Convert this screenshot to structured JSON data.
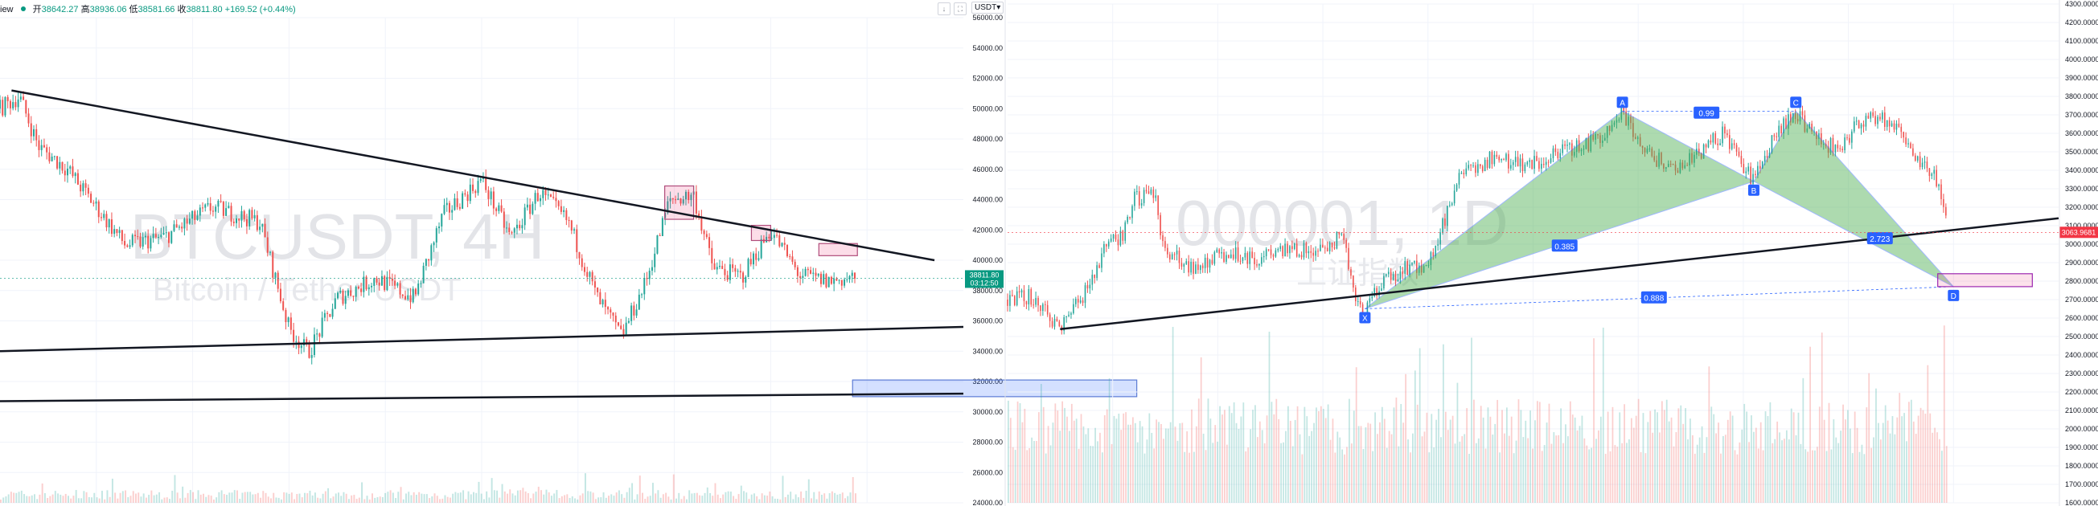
{
  "header": {
    "app_fragment": "iew",
    "open_label": "开",
    "open": "38642.27",
    "high_label": "高",
    "high": "38936.06",
    "low_label": "低",
    "low": "38581.66",
    "close_label": "收",
    "close": "38811.80",
    "change": "+169.52 (+0.44%)",
    "unit_selector": "USDT"
  },
  "colors": {
    "up": "#26a69a",
    "down": "#ef5350",
    "grid": "#f0f3fa",
    "trendline": "#131722",
    "harmonic_fill": "#4caf50",
    "harmonic_label": "#2962ff",
    "price_tag": "#089981",
    "price_tag_right": "#f23645"
  },
  "chart_data": [
    {
      "type": "candlestick",
      "watermark": "BTCUSDT, 4H",
      "watermark_sub": "Bitcoin / Tether USDT",
      "y_axis": {
        "ylim": [
          24000,
          56000
        ],
        "ticks": [
          "56000.00",
          "54000.00",
          "52000.00",
          "50000.00",
          "48000.00",
          "46000.00",
          "44000.00",
          "42000.00",
          "40000.00",
          "38000.00",
          "36000.00",
          "34000.00",
          "32000.00",
          "30000.00",
          "28000.00",
          "26000.00",
          "24000.00"
        ]
      },
      "last_price": "38811.80",
      "countdown": "03:12:50",
      "trendlines": [
        {
          "from": [
            0.012,
            51200
          ],
          "to": [
            0.97,
            40000
          ]
        },
        {
          "from": [
            0.0,
            34000
          ],
          "to": [
            1.0,
            35600
          ]
        },
        {
          "from": [
            0.0,
            30700
          ],
          "to": [
            1.0,
            31200
          ]
        }
      ],
      "zones": [
        {
          "x": [
            0.69,
            0.72
          ],
          "y": [
            42700,
            44900
          ]
        },
        {
          "x": [
            0.78,
            0.8
          ],
          "y": [
            41300,
            42300
          ]
        },
        {
          "x": [
            0.85,
            0.89
          ],
          "y": [
            40300,
            41100
          ]
        },
        {
          "x": [
            0.885,
            1.18
          ],
          "y": [
            31000,
            32100
          ]
        }
      ],
      "series_path": [
        [
          0.0,
          50000
        ],
        [
          0.02,
          50800
        ],
        [
          0.04,
          47500
        ],
        [
          0.07,
          46000
        ],
        [
          0.1,
          43500
        ],
        [
          0.13,
          41000
        ],
        [
          0.17,
          41500
        ],
        [
          0.22,
          43500
        ],
        [
          0.27,
          42500
        ],
        [
          0.3,
          35500
        ],
        [
          0.32,
          33900
        ],
        [
          0.35,
          37500
        ],
        [
          0.39,
          38800
        ],
        [
          0.43,
          37500
        ],
        [
          0.46,
          43000
        ],
        [
          0.5,
          45300
        ],
        [
          0.53,
          41500
        ],
        [
          0.56,
          44500
        ],
        [
          0.59,
          42500
        ],
        [
          0.62,
          37500
        ],
        [
          0.645,
          35000
        ],
        [
          0.67,
          38500
        ],
        [
          0.695,
          44000
        ],
        [
          0.72,
          44300
        ],
        [
          0.74,
          39500
        ],
        [
          0.77,
          38900
        ],
        [
          0.8,
          42000
        ],
        [
          0.83,
          39000
        ],
        [
          0.86,
          38600
        ],
        [
          0.89,
          38900
        ]
      ]
    },
    {
      "type": "candlestick",
      "watermark": "000001, 1D",
      "watermark_sub": "上证指数",
      "y_axis": {
        "ylim": [
          1600,
          4300
        ],
        "ticks": [
          "4300.0000",
          "4200.0000",
          "4100.0000",
          "4000.0000",
          "3900.0000",
          "3800.0000",
          "3700.0000",
          "3600.0000",
          "3500.0000",
          "3400.0000",
          "3300.0000",
          "3200.0000",
          "3100.0000",
          "3000.0000",
          "2900.0000",
          "2800.0000",
          "2700.0000",
          "2600.0000",
          "2500.0000",
          "2400.0000",
          "2300.0000",
          "2200.0000",
          "2100.0000",
          "2000.0000",
          "1900.0000",
          "1800.0000",
          "1700.0000",
          "1600.0000"
        ]
      },
      "last_price": "3063.9681",
      "trendline": {
        "from": [
          0.05,
          2540
        ],
        "to": [
          1.0,
          3140
        ]
      },
      "harmonic": {
        "points": [
          {
            "label": "X",
            "x": 0.34,
            "y": 2650
          },
          {
            "label": "A",
            "x": 0.585,
            "y": 3720
          },
          {
            "label": "B",
            "x": 0.71,
            "y": 3340
          },
          {
            "label": "C",
            "x": 0.75,
            "y": 3720
          },
          {
            "label": "D",
            "x": 0.9,
            "y": 2770
          }
        ],
        "ratios": [
          {
            "label": "0.385",
            "x": 0.53,
            "y": 2990
          },
          {
            "label": "0.99",
            "x": 0.665,
            "y": 3710
          },
          {
            "label": "2.723",
            "x": 0.83,
            "y": 3030
          },
          {
            "label": "0.888",
            "x": 0.615,
            "y": 2710
          }
        ],
        "zone": {
          "x": [
            0.885,
            0.975
          ],
          "y": [
            2770,
            2840
          ]
        }
      },
      "series_path": [
        [
          0.0,
          2700
        ],
        [
          0.02,
          2720
        ],
        [
          0.04,
          2600
        ],
        [
          0.05,
          2560
        ],
        [
          0.07,
          2700
        ],
        [
          0.09,
          2950
        ],
        [
          0.11,
          3060
        ],
        [
          0.12,
          3240
        ],
        [
          0.14,
          3260
        ],
        [
          0.15,
          2950
        ],
        [
          0.18,
          2870
        ],
        [
          0.21,
          2960
        ],
        [
          0.24,
          2920
        ],
        [
          0.27,
          2970
        ],
        [
          0.3,
          2960
        ],
        [
          0.32,
          3060
        ],
        [
          0.33,
          2700
        ],
        [
          0.34,
          2660
        ],
        [
          0.36,
          2800
        ],
        [
          0.38,
          2870
        ],
        [
          0.4,
          2880
        ],
        [
          0.43,
          3350
        ],
        [
          0.46,
          3470
        ],
        [
          0.5,
          3430
        ],
        [
          0.53,
          3500
        ],
        [
          0.56,
          3560
        ],
        [
          0.585,
          3720
        ],
        [
          0.61,
          3480
        ],
        [
          0.64,
          3410
        ],
        [
          0.68,
          3600
        ],
        [
          0.71,
          3340
        ],
        [
          0.73,
          3580
        ],
        [
          0.75,
          3720
        ],
        [
          0.77,
          3560
        ],
        [
          0.79,
          3520
        ],
        [
          0.81,
          3650
        ],
        [
          0.83,
          3700
        ],
        [
          0.85,
          3600
        ],
        [
          0.87,
          3430
        ],
        [
          0.88,
          3400
        ],
        [
          0.89,
          3200
        ],
        [
          0.895,
          3064
        ]
      ]
    }
  ]
}
